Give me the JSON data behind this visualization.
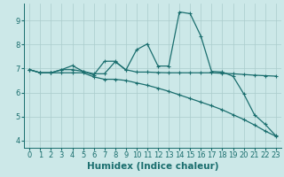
{
  "xlabel": "Humidex (Indice chaleur)",
  "bg_color": "#cce8e8",
  "grid_color": "#aacccc",
  "line_color": "#1a6e6e",
  "xlim": [
    -0.5,
    23.5
  ],
  "ylim": [
    3.7,
    9.7
  ],
  "xticks": [
    0,
    1,
    2,
    3,
    4,
    5,
    6,
    7,
    8,
    9,
    10,
    11,
    12,
    13,
    14,
    15,
    16,
    17,
    18,
    19,
    20,
    21,
    22,
    23
  ],
  "yticks": [
    4,
    5,
    6,
    7,
    8,
    9
  ],
  "curve1_x": [
    0,
    1,
    2,
    3,
    4,
    5,
    6,
    7,
    8,
    9,
    10,
    11,
    12,
    13,
    14,
    15,
    16,
    17,
    18,
    19,
    20,
    21,
    22,
    23
  ],
  "curve1_y": [
    6.95,
    6.82,
    6.82,
    6.95,
    6.95,
    6.88,
    6.78,
    6.78,
    7.28,
    6.95,
    6.85,
    6.85,
    6.83,
    6.82,
    6.82,
    6.82,
    6.82,
    6.82,
    6.8,
    6.78,
    6.75,
    6.72,
    6.7,
    6.68
  ],
  "curve2_x": [
    0,
    1,
    2,
    3,
    4,
    5,
    6,
    7,
    8,
    9,
    10,
    11,
    12,
    13,
    14,
    15,
    16,
    17,
    18,
    19,
    20,
    21,
    22,
    23
  ],
  "curve2_y": [
    6.95,
    6.82,
    6.82,
    6.82,
    6.82,
    6.82,
    6.65,
    6.55,
    6.55,
    6.5,
    6.4,
    6.3,
    6.18,
    6.05,
    5.9,
    5.75,
    5.6,
    5.45,
    5.28,
    5.08,
    4.88,
    4.65,
    4.4,
    4.18
  ],
  "curve3_x": [
    0,
    1,
    2,
    3,
    4,
    5,
    6,
    7,
    8,
    9,
    10,
    11,
    12,
    13,
    14,
    15,
    16,
    17,
    18,
    19,
    20,
    21,
    22,
    23
  ],
  "curve3_y": [
    6.95,
    6.82,
    6.82,
    6.95,
    7.12,
    6.88,
    6.73,
    7.3,
    7.3,
    6.93,
    7.78,
    8.02,
    7.1,
    7.1,
    9.35,
    9.28,
    8.35,
    6.88,
    6.85,
    6.68,
    5.95,
    5.08,
    4.68,
    4.2
  ],
  "marker": "+",
  "markersize": 3,
  "linewidth": 0.9,
  "xlabel_fontsize": 7.5,
  "tick_fontsize": 6.0
}
